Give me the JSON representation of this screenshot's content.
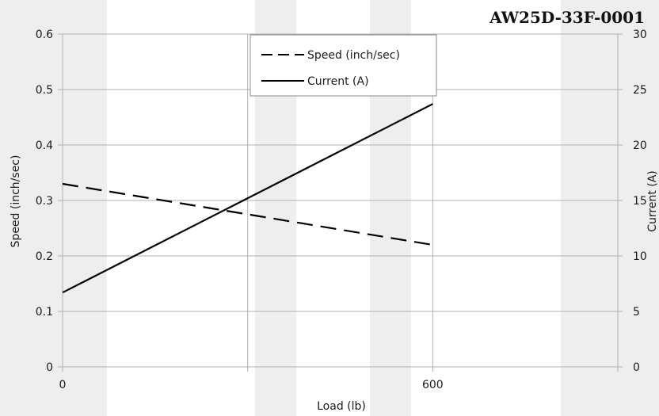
{
  "chart_data": {
    "type": "line",
    "title": "AW25D-33F-0001",
    "xlabel": "Load (lb)",
    "ylabel": "Speed (inch/sec)",
    "y2label": "Current (A)",
    "xlim": [
      0,
      900
    ],
    "ylim": [
      0,
      0.6
    ],
    "y2lim": [
      0,
      30
    ],
    "x_ticks": [
      0,
      600
    ],
    "y_ticks": [
      0,
      0.1,
      0.2,
      0.3,
      0.4,
      0.5,
      0.6
    ],
    "y2_ticks": [
      0,
      5,
      10,
      15,
      20,
      25,
      30
    ],
    "grid": true,
    "legend_position": "top-center",
    "series": [
      {
        "name": "Speed (inch/sec)",
        "axis": "left",
        "style": "dashed",
        "x": [
          0,
          600
        ],
        "y": [
          0.33,
          0.22
        ]
      },
      {
        "name": "Current (A)",
        "axis": "right",
        "style": "solid",
        "x": [
          0,
          600
        ],
        "y": [
          6.7,
          23.7
        ]
      }
    ]
  },
  "colors": {
    "line": "#000000",
    "grid": "#b0b0b0",
    "stripe": "#eeeeee"
  }
}
